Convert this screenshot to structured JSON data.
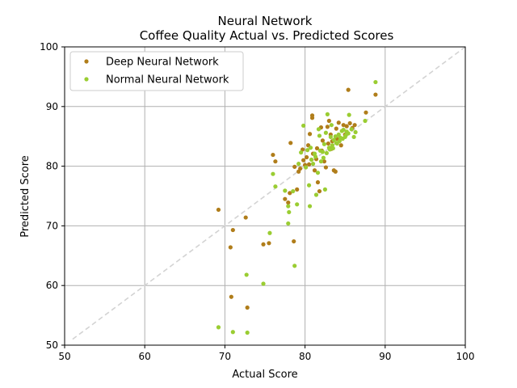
{
  "chart_data": {
    "type": "scatter",
    "title": "Neural Network",
    "subtitle": "Coffee Quality Actual vs. Predicted Scores",
    "xlabel": "Actual Score",
    "ylabel": "Predicted Score",
    "xlim": [
      50,
      100
    ],
    "ylim": [
      50,
      100
    ],
    "xticks": [
      "50",
      "60",
      "70",
      "80",
      "90",
      "100"
    ],
    "yticks": [
      "50",
      "60",
      "70",
      "80",
      "90",
      "100"
    ],
    "grid": true,
    "legend_position": "top-left",
    "reference_line": {
      "style": "dashed",
      "color": "#d3d3d3",
      "from": [
        51,
        51
      ],
      "to": [
        100,
        100
      ]
    },
    "series": [
      {
        "name": "Deep Neural Network",
        "color": "#b07d1a",
        "points": [
          [
            69.2,
            72.7
          ],
          [
            70.7,
            66.4
          ],
          [
            71.0,
            69.3
          ],
          [
            70.8,
            58.1
          ],
          [
            72.6,
            71.4
          ],
          [
            72.8,
            56.3
          ],
          [
            74.8,
            66.9
          ],
          [
            75.5,
            67.1
          ],
          [
            76.0,
            81.9
          ],
          [
            76.3,
            80.8
          ],
          [
            77.5,
            74.5
          ],
          [
            77.9,
            73.9
          ],
          [
            78.1,
            75.5
          ],
          [
            78.2,
            83.9
          ],
          [
            78.6,
            67.4
          ],
          [
            78.7,
            79.9
          ],
          [
            79.0,
            76.1
          ],
          [
            79.2,
            79.1
          ],
          [
            79.4,
            79.6
          ],
          [
            79.7,
            82.8
          ],
          [
            80.0,
            80.2
          ],
          [
            80.2,
            81.5
          ],
          [
            80.4,
            83.5
          ],
          [
            80.6,
            85.4
          ],
          [
            80.9,
            88.1
          ],
          [
            80.9,
            88.5
          ],
          [
            81.2,
            79.3
          ],
          [
            81.4,
            81.2
          ],
          [
            81.6,
            77.3
          ],
          [
            81.8,
            75.8
          ],
          [
            82.0,
            86.5
          ],
          [
            82.2,
            84.3
          ],
          [
            82.4,
            80.8
          ],
          [
            82.6,
            79.8
          ],
          [
            82.8,
            86.6
          ],
          [
            83.0,
            87.6
          ],
          [
            83.2,
            85.3
          ],
          [
            83.4,
            84.2
          ],
          [
            83.6,
            79.3
          ],
          [
            83.8,
            79.1
          ],
          [
            83.9,
            86.3
          ],
          [
            84.2,
            87.3
          ],
          [
            84.5,
            83.5
          ],
          [
            84.8,
            86.9
          ],
          [
            85.0,
            85.3
          ],
          [
            85.2,
            86.7
          ],
          [
            85.4,
            92.8
          ],
          [
            85.6,
            87.2
          ],
          [
            85.9,
            86.4
          ],
          [
            86.2,
            86.9
          ],
          [
            87.6,
            89.0
          ],
          [
            88.8,
            92.0
          ],
          [
            81.0,
            82.1
          ],
          [
            81.5,
            83.0
          ],
          [
            82.1,
            82.6
          ],
          [
            82.9,
            83.8
          ],
          [
            83.3,
            82.9
          ],
          [
            84.0,
            84.6
          ],
          [
            79.8,
            81.0
          ],
          [
            80.5,
            80.3
          ]
        ]
      },
      {
        "name": "Normal Neural Network",
        "color": "#9acd32",
        "points": [
          [
            69.2,
            53.0
          ],
          [
            71.0,
            52.2
          ],
          [
            72.7,
            61.8
          ],
          [
            72.8,
            52.1
          ],
          [
            74.8,
            60.3
          ],
          [
            75.6,
            68.8
          ],
          [
            76.0,
            78.7
          ],
          [
            76.3,
            76.6
          ],
          [
            77.5,
            75.9
          ],
          [
            77.9,
            73.3
          ],
          [
            77.9,
            70.4
          ],
          [
            78.0,
            72.3
          ],
          [
            78.5,
            75.8
          ],
          [
            78.7,
            63.3
          ],
          [
            79.0,
            73.6
          ],
          [
            79.2,
            80.4
          ],
          [
            79.5,
            82.3
          ],
          [
            79.8,
            86.8
          ],
          [
            80.1,
            79.8
          ],
          [
            80.3,
            82.7
          ],
          [
            80.5,
            76.8
          ],
          [
            80.6,
            73.3
          ],
          [
            80.8,
            81.1
          ],
          [
            81.0,
            80.4
          ],
          [
            81.2,
            82.1
          ],
          [
            81.4,
            75.2
          ],
          [
            81.6,
            78.9
          ],
          [
            81.8,
            85.1
          ],
          [
            82.0,
            80.8
          ],
          [
            82.2,
            82.4
          ],
          [
            82.4,
            83.7
          ],
          [
            82.6,
            85.6
          ],
          [
            82.8,
            88.7
          ],
          [
            83.0,
            83.1
          ],
          [
            83.2,
            84.9
          ],
          [
            83.4,
            83.5
          ],
          [
            83.6,
            84.4
          ],
          [
            83.8,
            85.0
          ],
          [
            84.0,
            83.8
          ],
          [
            84.2,
            85.3
          ],
          [
            84.4,
            84.8
          ],
          [
            84.6,
            85.9
          ],
          [
            84.8,
            86.1
          ],
          [
            85.0,
            84.9
          ],
          [
            85.2,
            85.8
          ],
          [
            85.5,
            88.6
          ],
          [
            85.8,
            86.2
          ],
          [
            86.1,
            84.9
          ],
          [
            86.3,
            85.7
          ],
          [
            87.5,
            87.6
          ],
          [
            88.8,
            94.1
          ],
          [
            80.7,
            83.1
          ],
          [
            81.3,
            81.6
          ],
          [
            81.9,
            82.6
          ],
          [
            82.3,
            81.4
          ],
          [
            82.7,
            82.2
          ],
          [
            83.1,
            82.8
          ],
          [
            83.5,
            83.0
          ],
          [
            83.9,
            83.9
          ],
          [
            84.3,
            84.2
          ],
          [
            84.7,
            84.6
          ],
          [
            85.1,
            85.2
          ],
          [
            85.4,
            85.5
          ],
          [
            82.5,
            76.1
          ],
          [
            81.7,
            86.2
          ],
          [
            83.3,
            86.9
          ]
        ]
      }
    ]
  }
}
